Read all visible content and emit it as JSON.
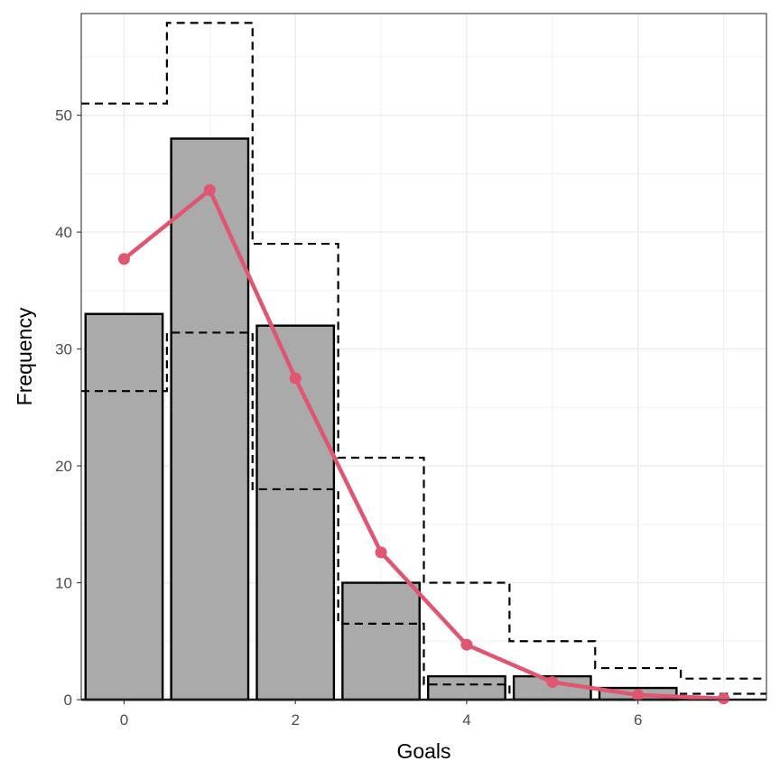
{
  "chart_data": {
    "type": "bar",
    "xlabel": "Goals",
    "ylabel": "Frequency",
    "x": [
      0,
      1,
      2,
      3,
      4,
      5,
      6,
      7
    ],
    "xlim": [
      -0.5,
      7.5
    ],
    "ylim": [
      0,
      58.7
    ],
    "x_ticks": [
      0,
      2,
      4,
      6
    ],
    "y_ticks": [
      0,
      10,
      20,
      30,
      40,
      50
    ],
    "grid": true,
    "legend": "none",
    "series": [
      {
        "type": "bar",
        "x": [
          0,
          1,
          2,
          3,
          4,
          5,
          6
        ],
        "values": [
          33,
          48,
          32,
          10,
          2,
          2,
          1
        ]
      },
      {
        "type": "line",
        "x": [
          0,
          1,
          2,
          3,
          4,
          5,
          6,
          7
        ],
        "values": [
          37.7,
          43.6,
          27.5,
          12.6,
          4.7,
          1.5,
          0.4,
          0.1
        ]
      },
      {
        "type": "step",
        "x": [
          0,
          1,
          2,
          3,
          4,
          5,
          6,
          7
        ],
        "values": [
          51.0,
          57.9,
          39.0,
          20.7,
          10.0,
          5.0,
          2.7,
          1.8
        ]
      },
      {
        "type": "step",
        "x": [
          0,
          1,
          2,
          3,
          4,
          5,
          6,
          7
        ],
        "values": [
          26.4,
          31.4,
          18.0,
          6.5,
          1.3,
          0.0,
          0.0,
          0.5
        ]
      }
    ],
    "colors": {
      "bar_fill": "#aaaaaa",
      "bar_stroke": "#000000",
      "line": "#e05570",
      "band": "#000000",
      "grid": "#ebebeb"
    }
  }
}
